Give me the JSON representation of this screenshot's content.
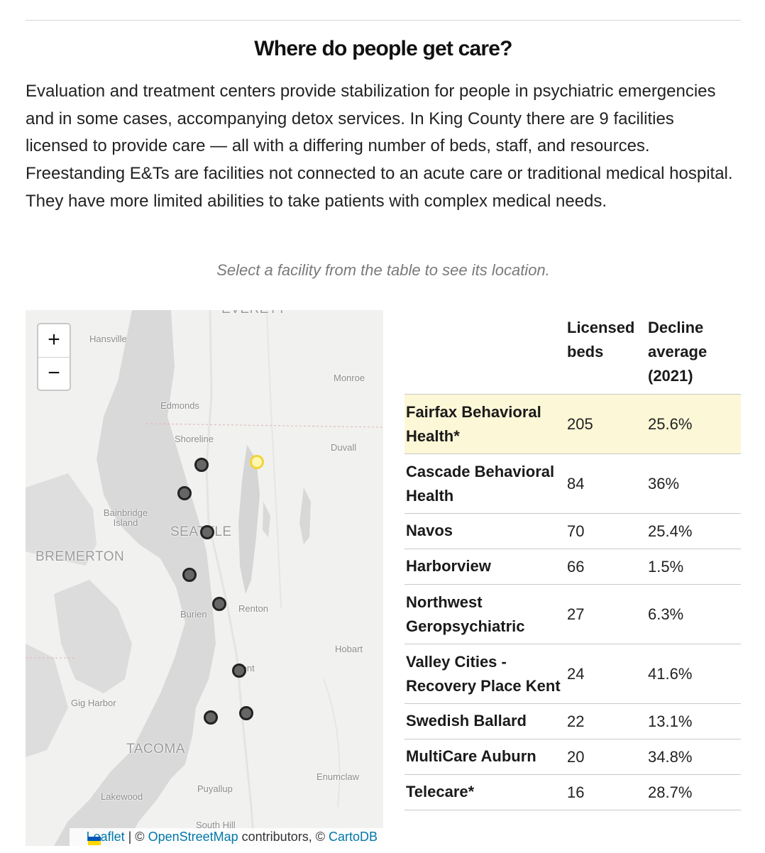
{
  "title": "Where do people get care?",
  "intro": "Evaluation and treatment centers provide stabilization for people in psychiatric emergencies and in some cases, accompanying detox services. In King County there are 9 facilities licensed to provide care — all with a differing number of beds, staff, and resources. Freestanding E&Ts are facilities not connected to an acute care or traditional medical hospital. They have more limited abilities to take patients with complex medical needs.",
  "hint": "Select a facility from the table to see its location.",
  "map": {
    "zoom_in": "+",
    "zoom_out": "−",
    "labels": {
      "everett": "EVERETT",
      "hansville": "Hansville",
      "monroe": "Monroe",
      "edmonds": "Edmonds",
      "shoreline": "Shoreline",
      "duvall": "Duvall",
      "bainbridge": "Bainbridge Island",
      "seattle": "SEATTLE",
      "bremerton": "BREMERTON",
      "burien": "Burien",
      "renton": "Renton",
      "hobart": "Hobart",
      "kent": "Kent",
      "gig_harbor": "Gig Harbor",
      "tacoma": "TACOMA",
      "enumclaw": "Enumclaw",
      "puyallup": "Puyallup",
      "lakewood": "Lakewood",
      "south_hill": "South Hill"
    },
    "attribution": {
      "leaflet": "Leaflet",
      "sep1": " | © ",
      "osm": "OpenStreetMap",
      "sep2": " contributors, © ",
      "carto": "CartoDB"
    },
    "colors": {
      "marker": "#666666",
      "marker_border": "#222222",
      "selected_marker": "#f1d43a"
    }
  },
  "table": {
    "headers": {
      "beds": "Licensed beds",
      "decline": "Decline average (2021)"
    },
    "selected_row": "Fairfax Behavioral Health*",
    "rows": [
      {
        "name": "Fairfax Behavioral Health*",
        "beds": "205",
        "decline": "25.6%"
      },
      {
        "name": "Cascade Behavioral Health",
        "beds": "84",
        "decline": "36%"
      },
      {
        "name": "Navos",
        "beds": "70",
        "decline": "25.4%"
      },
      {
        "name": "Harborview",
        "beds": "66",
        "decline": "1.5%"
      },
      {
        "name": "Northwest Geropsychiatric",
        "beds": "27",
        "decline": "6.3%"
      },
      {
        "name": "Valley Cities - Recovery Place Kent",
        "beds": "24",
        "decline": "41.6%"
      },
      {
        "name": "Swedish Ballard",
        "beds": "22",
        "decline": "13.1%"
      },
      {
        "name": "MultiCare Auburn",
        "beds": "20",
        "decline": "34.8%"
      },
      {
        "name": "Telecare*",
        "beds": "16",
        "decline": "28.7%"
      }
    ]
  }
}
